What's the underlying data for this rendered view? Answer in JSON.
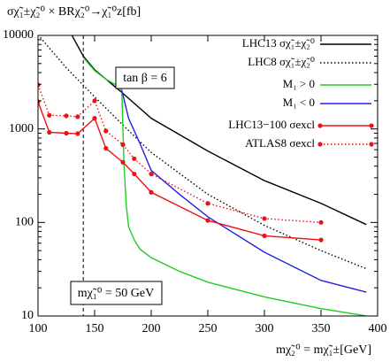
{
  "chart_data": {
    "type": "line",
    "title": "σχ̃₁±χ̃₂⁰ × BRχ̃₂⁰→χ̃₁⁰z[fb]",
    "x_label": "mχ̃₂⁰ = mχ̃₁±[GeV]",
    "annotations": [
      "tan β = 6",
      "mχ̃₁⁰ = 50 GeV"
    ],
    "vline": 140,
    "xlim": [
      100,
      400
    ],
    "xticks": [
      100,
      150,
      200,
      250,
      300,
      350,
      400
    ],
    "ylim": [
      10,
      10000
    ],
    "yticks": [
      10,
      100,
      1000,
      10000
    ],
    "yminor": [
      20,
      30,
      40,
      50,
      60,
      70,
      80,
      90,
      200,
      300,
      400,
      500,
      600,
      700,
      800,
      900,
      2000,
      3000,
      4000,
      5000,
      6000,
      7000,
      8000,
      9000
    ],
    "log_y": true,
    "legend": "top-right",
    "series": [
      {
        "name": "LHC13 σχ̃₁±χ̃₂⁰",
        "color": "#000000",
        "dash": "solid",
        "markers": false,
        "x": [
          130,
          140,
          150,
          175,
          200,
          250,
          300,
          350,
          390
        ],
        "values": [
          10000,
          6000,
          4300,
          2400,
          1300,
          580,
          280,
          160,
          95
        ]
      },
      {
        "name": "LHC8 σχ̃₁±χ̃₂⁰",
        "color": "#000000",
        "dash": "dotted",
        "markers": false,
        "x": [
          102,
          125,
          150,
          175,
          200,
          250,
          300,
          350,
          390
        ],
        "values": [
          9500,
          4500,
          2200,
          1100,
          560,
          200,
          93,
          50,
          32
        ]
      },
      {
        "name": "M₁ > 0",
        "color": "#22cc22",
        "dash": "solid",
        "markers": false,
        "x": [
          140,
          150,
          160,
          170,
          174,
          175,
          176,
          178,
          180,
          185,
          190,
          200,
          225,
          250,
          300,
          350,
          390
        ],
        "values": [
          5800,
          4200,
          3400,
          2900,
          2600,
          1000,
          400,
          150,
          90,
          65,
          52,
          42,
          30,
          23,
          16,
          12,
          10
        ]
      },
      {
        "name": "M₁ < 0",
        "color": "#2222dd",
        "dash": "solid",
        "markers": false,
        "x": [
          174,
          180,
          190,
          200,
          225,
          250,
          300,
          350,
          390
        ],
        "values": [
          2600,
          1300,
          700,
          360,
          200,
          115,
          48,
          24,
          18
        ]
      },
      {
        "name": "LHC13−100 σexcl",
        "color": "#ee1111",
        "dash": "solid",
        "markers": true,
        "x": [
          100,
          110,
          125,
          135,
          150,
          160,
          175,
          185,
          200,
          250,
          300,
          350
        ],
        "values": [
          1950,
          920,
          900,
          890,
          1300,
          620,
          440,
          330,
          210,
          105,
          72,
          65
        ]
      },
      {
        "name": "ATLAS8 σexcl",
        "color": "#ee1111",
        "dash": "dotted",
        "markers": true,
        "x": [
          100,
          110,
          125,
          135,
          150,
          160,
          175,
          185,
          200,
          250,
          300,
          350
        ],
        "values": [
          2950,
          1400,
          1380,
          1350,
          2000,
          950,
          680,
          480,
          330,
          160,
          110,
          100
        ]
      }
    ]
  }
}
